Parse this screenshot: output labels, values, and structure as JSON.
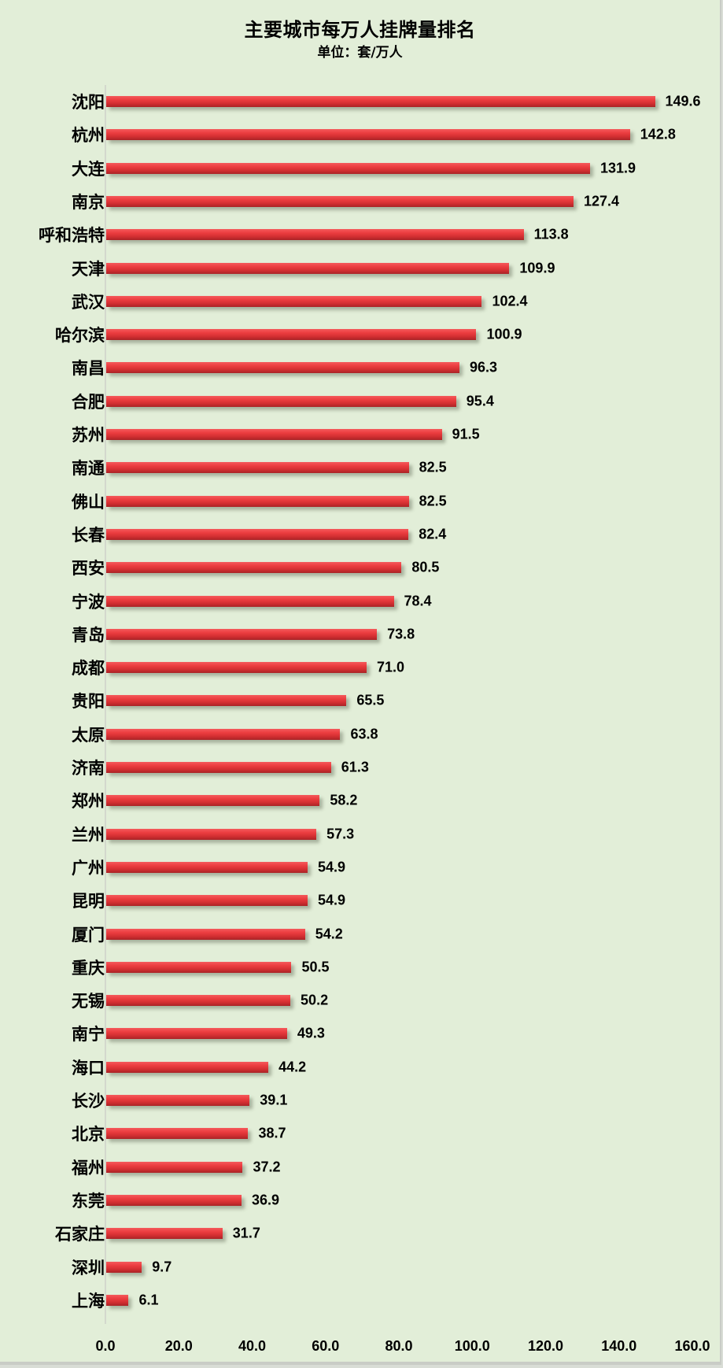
{
  "chart_data": {
    "type": "bar",
    "orientation": "horizontal",
    "title": "主要城市每万人挂牌量排名",
    "subtitle": "单位：套/万人",
    "xlabel": "",
    "ylabel": "",
    "xlim": [
      0,
      160
    ],
    "x_ticks": [
      "0.0",
      "20.0",
      "40.0",
      "60.0",
      "80.0",
      "100.0",
      "120.0",
      "140.0",
      "160.0"
    ],
    "grid": false,
    "legend": null,
    "bar_color": "#e8393c",
    "background_color": "#e2eed8",
    "categories": [
      "沈阳",
      "杭州",
      "大连",
      "南京",
      "呼和浩特",
      "天津",
      "武汉",
      "哈尔滨",
      "南昌",
      "合肥",
      "苏州",
      "南通",
      "佛山",
      "长春",
      "西安",
      "宁波",
      "青岛",
      "成都",
      "贵阳",
      "太原",
      "济南",
      "郑州",
      "兰州",
      "广州",
      "昆明",
      "厦门",
      "重庆",
      "无锡",
      "南宁",
      "海口",
      "长沙",
      "北京",
      "福州",
      "东莞",
      "石家庄",
      "深圳",
      "上海"
    ],
    "values": [
      149.6,
      142.8,
      131.9,
      127.4,
      113.8,
      109.9,
      102.4,
      100.9,
      96.3,
      95.4,
      91.5,
      82.5,
      82.5,
      82.4,
      80.5,
      78.4,
      73.8,
      71.0,
      65.5,
      63.8,
      61.3,
      58.2,
      57.3,
      54.9,
      54.9,
      54.2,
      50.5,
      50.2,
      49.3,
      44.2,
      39.1,
      38.7,
      37.2,
      36.9,
      31.7,
      9.7,
      6.1
    ],
    "value_labels": [
      "149.6",
      "142.8",
      "131.9",
      "127.4",
      "113.8",
      "109.9",
      "102.4",
      "100.9",
      "96.3",
      "95.4",
      "91.5",
      "82.5",
      "82.5",
      "82.4",
      "80.5",
      "78.4",
      "73.8",
      "71.0",
      "65.5",
      "63.8",
      "61.3",
      "58.2",
      "57.3",
      "54.9",
      "54.9",
      "54.2",
      "50.5",
      "50.2",
      "49.3",
      "44.2",
      "39.1",
      "38.7",
      "37.2",
      "36.9",
      "31.7",
      "9.7",
      "6.1"
    ]
  }
}
